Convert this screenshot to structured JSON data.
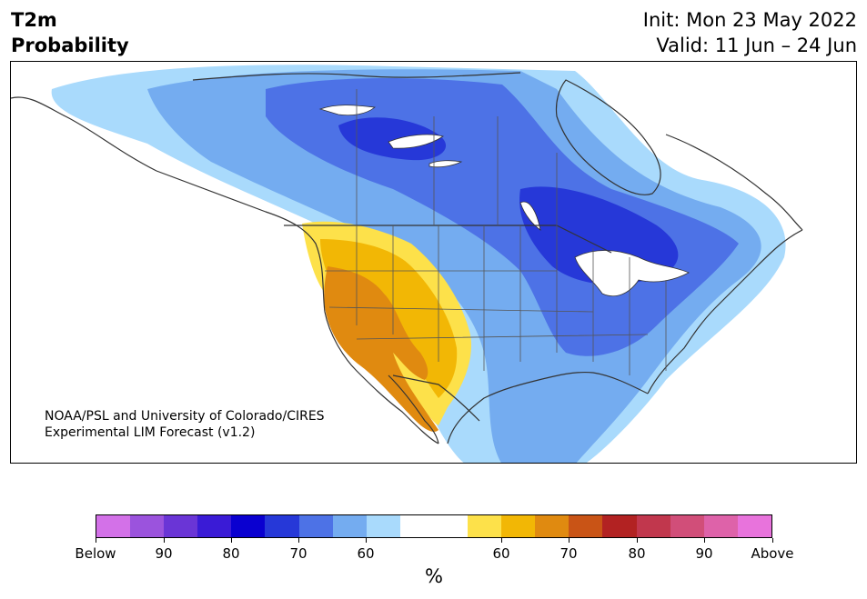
{
  "header": {
    "title_line1": "T2m",
    "title_line2": "Probability",
    "init": "Init: Mon 23 May 2022",
    "valid": "Valid: 11 Jun – 24 Jun"
  },
  "credit": {
    "line1": "NOAA/PSL and University of Colorado/CIRES",
    "line2": "Experimental LIM Forecast (v1.2)"
  },
  "colorbar": {
    "colors": [
      "#d371e8",
      "#9b53dd",
      "#6a35d6",
      "#3a1bd6",
      "#0a00d0",
      "#2638d8",
      "#4d72e6",
      "#74acf0",
      "#a9dafc",
      "#ffffff",
      "#ffffff",
      "#fde14a",
      "#f2b705",
      "#e08a10",
      "#c95416",
      "#b22222",
      "#c1374d",
      "#d14e79",
      "#de62a9",
      "#e873dc"
    ],
    "labels": [
      "Below",
      "90",
      "80",
      "70",
      "60",
      "60",
      "70",
      "80",
      "90",
      "Above"
    ],
    "unit": "%"
  },
  "map": {
    "colors": {
      "ocean": "#ffffff",
      "land": "#ffffff",
      "below_60": "#a9dafc",
      "below_70": "#74acf0",
      "below_80": "#4d72e6",
      "below_90": "#2638d8",
      "above_60": "#fde14a",
      "above_70": "#f2b705",
      "above_80": "#e08a10",
      "boundary": "#333333"
    }
  }
}
